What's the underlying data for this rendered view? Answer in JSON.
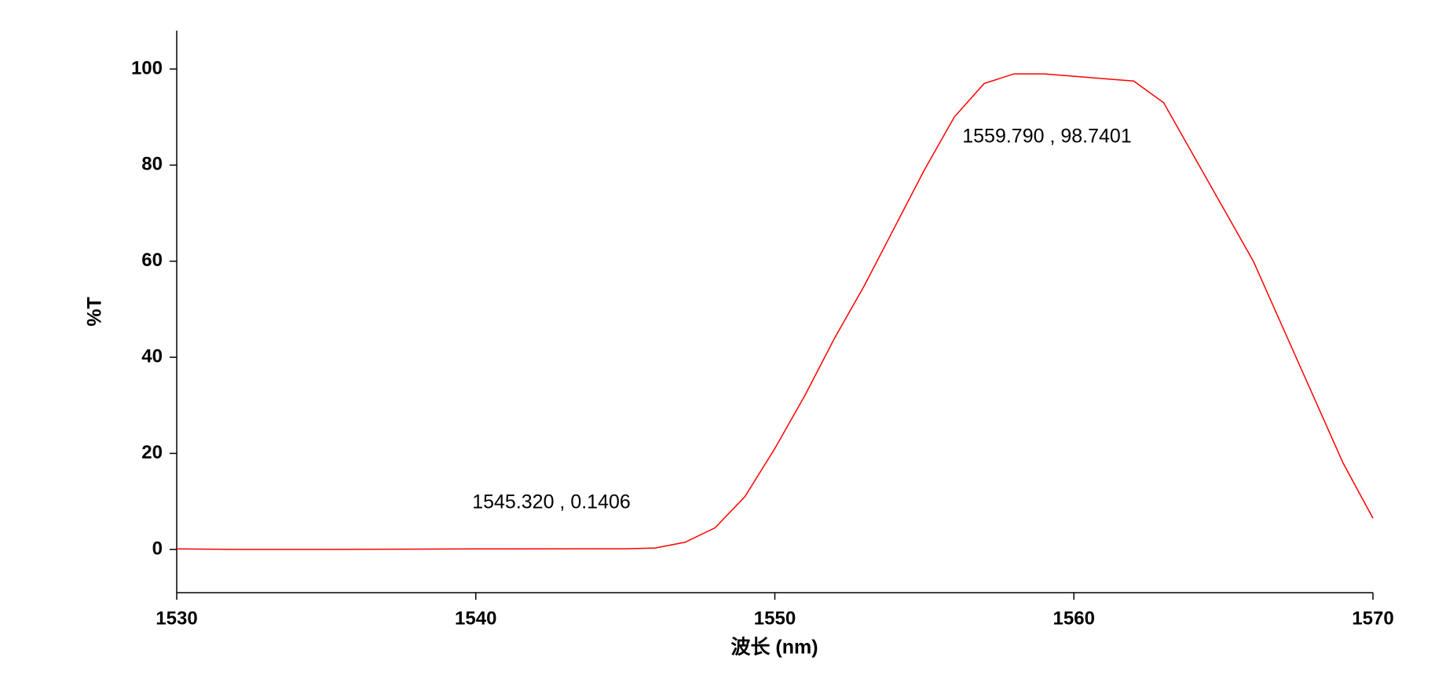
{
  "chart_data": {
    "type": "line",
    "x_label": "波长 (nm)",
    "y_label": "%T",
    "x": [
      1530,
      1532,
      1535,
      1540,
      1545,
      1546,
      1547,
      1548,
      1549,
      1550,
      1551,
      1552,
      1553,
      1554,
      1555,
      1556,
      1557,
      1558,
      1559,
      1560,
      1561,
      1562,
      1563,
      1564,
      1565,
      1566,
      1567,
      1568,
      1569,
      1570
    ],
    "series": [
      {
        "color": "#ff0000",
        "values": [
          0.1,
          0,
          0,
          0.1,
          0.14,
          0.3,
          1.5,
          4.5,
          11,
          21,
          32,
          44,
          55,
          67,
          79,
          90,
          97,
          99,
          99,
          98.5,
          98,
          97.5,
          93,
          82,
          71,
          60,
          46,
          32,
          18,
          6.5
        ]
      }
    ],
    "xlim": [
      1530,
      1570
    ],
    "xticks": [
      1530,
      1540,
      1550,
      1560,
      1570
    ],
    "ylim": [
      -9,
      108
    ],
    "yticks": [
      0,
      20,
      40,
      60,
      80,
      100
    ],
    "annotations": [
      "1545.320 , 0.1406",
      "1559.790 , 98.7401"
    ]
  }
}
